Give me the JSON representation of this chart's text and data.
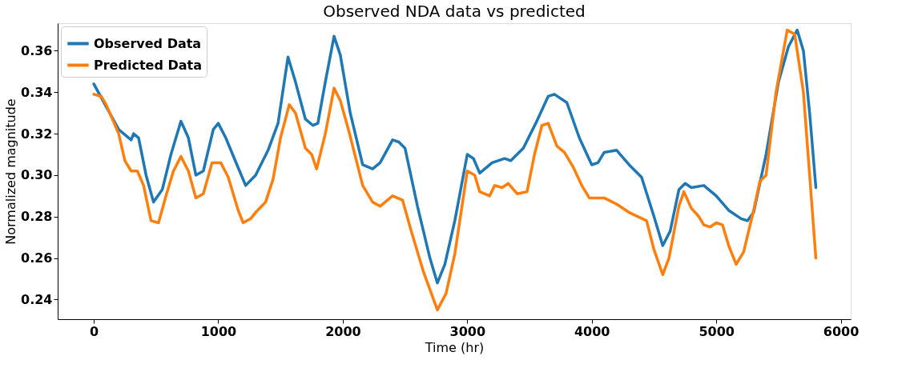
{
  "chart_data": {
    "type": "line",
    "title": "Observed NDA data vs predicted",
    "xlabel": "Time (hr)",
    "ylabel": "Normalized magnitude",
    "xlim": [
      -290,
      6080
    ],
    "ylim": [
      0.2305,
      0.3733
    ],
    "xticks": [
      0,
      1000,
      2000,
      3000,
      4000,
      5000,
      6000
    ],
    "yticks": [
      0.24,
      0.26,
      0.28,
      {
        "value": 0.3,
        "label": "0.30"
      },
      0.32,
      0.34,
      0.36
    ],
    "grid": false,
    "legend": "top left",
    "series": [
      {
        "name": "Observed Data",
        "color": "#1f77b4",
        "x": [
          0,
          100,
          200,
          300,
          320,
          360,
          420,
          480,
          550,
          620,
          700,
          760,
          820,
          880,
          960,
          1000,
          1060,
          1150,
          1220,
          1300,
          1400,
          1480,
          1560,
          1620,
          1700,
          1760,
          1800,
          1860,
          1930,
          1980,
          2060,
          2160,
          2240,
          2300,
          2400,
          2450,
          2500,
          2600,
          2700,
          2760,
          2820,
          2900,
          3000,
          3050,
          3100,
          3200,
          3300,
          3350,
          3450,
          3550,
          3650,
          3700,
          3800,
          3900,
          4000,
          4050,
          4100,
          4200,
          4300,
          4400,
          4500,
          4570,
          4630,
          4700,
          4750,
          4800,
          4900,
          5000,
          5100,
          5200,
          5250,
          5300,
          5400,
          5500,
          5580,
          5650,
          5700,
          5750,
          5800
        ],
        "values": [
          0.344,
          0.333,
          0.322,
          0.317,
          0.32,
          0.318,
          0.3,
          0.287,
          0.293,
          0.31,
          0.326,
          0.318,
          0.3,
          0.302,
          0.322,
          0.325,
          0.318,
          0.305,
          0.295,
          0.3,
          0.312,
          0.325,
          0.357,
          0.345,
          0.327,
          0.324,
          0.325,
          0.345,
          0.367,
          0.358,
          0.33,
          0.305,
          0.303,
          0.306,
          0.317,
          0.316,
          0.313,
          0.285,
          0.26,
          0.248,
          0.257,
          0.278,
          0.31,
          0.308,
          0.301,
          0.306,
          0.308,
          0.307,
          0.313,
          0.325,
          0.338,
          0.339,
          0.335,
          0.318,
          0.305,
          0.306,
          0.311,
          0.312,
          0.305,
          0.299,
          0.28,
          0.266,
          0.273,
          0.293,
          0.296,
          0.294,
          0.295,
          0.29,
          0.283,
          0.279,
          0.278,
          0.282,
          0.31,
          0.345,
          0.362,
          0.37,
          0.36,
          0.33,
          0.294
        ]
      },
      {
        "name": "Predicted Data",
        "color": "#ff7f0e",
        "x": [
          0,
          60,
          100,
          200,
          250,
          300,
          350,
          400,
          460,
          520,
          580,
          640,
          700,
          760,
          820,
          880,
          950,
          1020,
          1080,
          1160,
          1200,
          1260,
          1300,
          1380,
          1440,
          1500,
          1570,
          1620,
          1700,
          1750,
          1790,
          1860,
          1930,
          1980,
          2050,
          2160,
          2240,
          2300,
          2400,
          2480,
          2550,
          2650,
          2760,
          2830,
          2900,
          3000,
          3060,
          3100,
          3180,
          3220,
          3280,
          3330,
          3400,
          3480,
          3540,
          3600,
          3650,
          3720,
          3780,
          3850,
          3920,
          3980,
          4100,
          4200,
          4300,
          4440,
          4500,
          4570,
          4620,
          4700,
          4740,
          4800,
          4860,
          4900,
          4950,
          5000,
          5050,
          5100,
          5160,
          5220,
          5300,
          5350,
          5400,
          5480,
          5570,
          5630,
          5700,
          5800
        ],
        "values": [
          0.339,
          0.338,
          0.334,
          0.32,
          0.307,
          0.302,
          0.302,
          0.295,
          0.278,
          0.277,
          0.29,
          0.302,
          0.309,
          0.302,
          0.289,
          0.291,
          0.306,
          0.306,
          0.299,
          0.283,
          0.277,
          0.279,
          0.282,
          0.287,
          0.298,
          0.318,
          0.334,
          0.33,
          0.313,
          0.31,
          0.303,
          0.32,
          0.342,
          0.336,
          0.321,
          0.295,
          0.287,
          0.285,
          0.29,
          0.288,
          0.273,
          0.253,
          0.235,
          0.243,
          0.262,
          0.302,
          0.3,
          0.292,
          0.29,
          0.295,
          0.294,
          0.296,
          0.291,
          0.292,
          0.31,
          0.324,
          0.325,
          0.314,
          0.311,
          0.304,
          0.295,
          0.289,
          0.289,
          0.286,
          0.282,
          0.278,
          0.264,
          0.252,
          0.26,
          0.285,
          0.292,
          0.284,
          0.28,
          0.276,
          0.275,
          0.277,
          0.276,
          0.266,
          0.257,
          0.263,
          0.283,
          0.297,
          0.3,
          0.34,
          0.37,
          0.368,
          0.34,
          0.26
        ]
      }
    ]
  }
}
